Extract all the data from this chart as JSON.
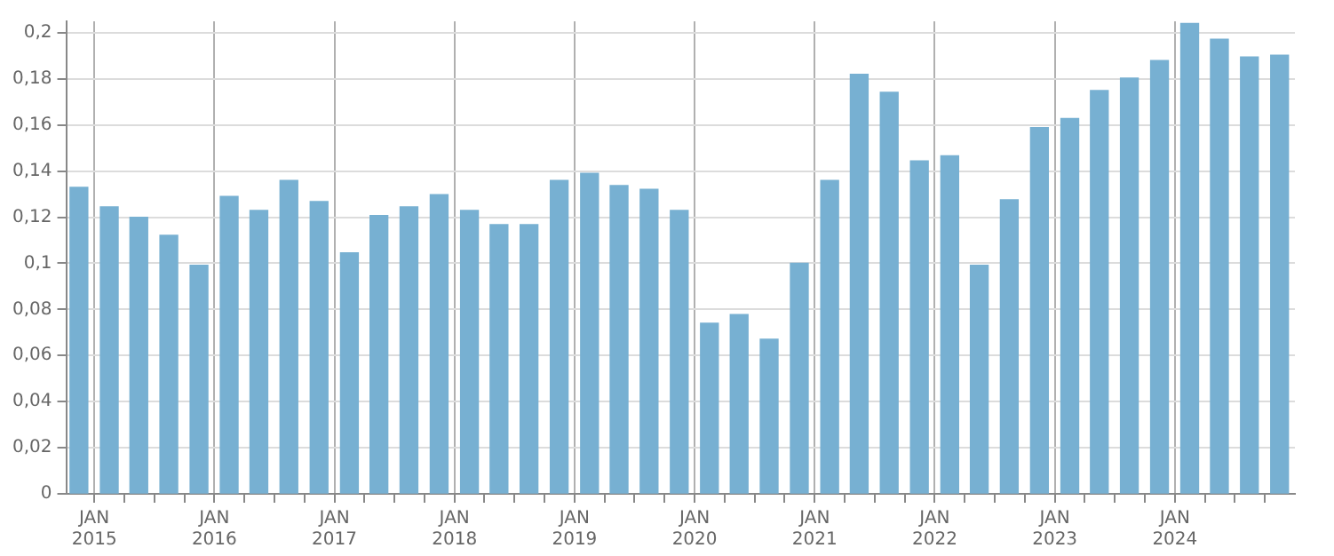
{
  "chart_data": {
    "type": "bar",
    "color": "#77b0d2",
    "x": [
      "2014-11-15",
      "2015-02-15",
      "2015-05-15",
      "2015-08-15",
      "2015-11-15",
      "2016-02-15",
      "2016-05-15",
      "2016-08-15",
      "2016-11-15",
      "2017-02-15",
      "2017-05-15",
      "2017-08-15",
      "2017-11-15",
      "2018-02-15",
      "2018-05-15",
      "2018-08-15",
      "2018-11-15",
      "2019-02-15",
      "2019-05-15",
      "2019-08-15",
      "2019-11-15",
      "2020-02-15",
      "2020-05-15",
      "2020-08-15",
      "2020-11-15",
      "2021-02-15",
      "2021-05-15",
      "2021-08-15",
      "2021-11-15",
      "2022-02-15",
      "2022-05-15",
      "2022-08-15",
      "2022-11-15",
      "2023-02-15",
      "2023-05-15",
      "2023-08-15",
      "2023-11-15",
      "2024-02-15",
      "2024-05-15",
      "2024-08-15",
      "2024-11-15"
    ],
    "values": [
      0.133,
      0.1245,
      0.12,
      0.1122,
      0.0992,
      0.129,
      0.123,
      0.136,
      0.1268,
      0.1046,
      0.1207,
      0.1245,
      0.1298,
      0.123,
      0.1168,
      0.1168,
      0.136,
      0.139,
      0.1337,
      0.1321,
      0.123,
      0.074,
      0.0778,
      0.0671,
      0.1,
      0.136,
      0.182,
      0.1742,
      0.1444,
      0.1467,
      0.0992,
      0.1276,
      0.1589,
      0.1628,
      0.175,
      0.1804,
      0.188,
      0.2041,
      0.1972,
      0.1895,
      0.1903
    ],
    "xlim": [
      "2014-10-07",
      "2025-01-01"
    ],
    "xticks": [
      {
        "value": "2015-01",
        "label": "JAN 2015"
      },
      {
        "value": "2015-04",
        "label": null
      },
      {
        "value": "2015-07",
        "label": null
      },
      {
        "value": "2015-10",
        "label": null
      },
      {
        "value": "2016-01",
        "label": "JAN 2016"
      },
      {
        "value": "2016-04",
        "label": null
      },
      {
        "value": "2016-07",
        "label": null
      },
      {
        "value": "2016-10",
        "label": null
      },
      {
        "value": "2017-01",
        "label": "JAN 2017"
      },
      {
        "value": "2017-04",
        "label": null
      },
      {
        "value": "2017-07",
        "label": null
      },
      {
        "value": "2017-10",
        "label": null
      },
      {
        "value": "2018-01",
        "label": "JAN 2018"
      },
      {
        "value": "2018-04",
        "label": null
      },
      {
        "value": "2018-07",
        "label": null
      },
      {
        "value": "2018-10",
        "label": null
      },
      {
        "value": "2019-01",
        "label": "JAN 2019"
      },
      {
        "value": "2019-04",
        "label": null
      },
      {
        "value": "2019-07",
        "label": null
      },
      {
        "value": "2019-10",
        "label": null
      },
      {
        "value": "2020-01",
        "label": "JAN 2020"
      },
      {
        "value": "2020-04",
        "label": null
      },
      {
        "value": "2020-07",
        "label": null
      },
      {
        "value": "2020-10",
        "label": null
      },
      {
        "value": "2021-01",
        "label": "JAN 2021"
      },
      {
        "value": "2021-04",
        "label": null
      },
      {
        "value": "2021-07",
        "label": null
      },
      {
        "value": "2021-10",
        "label": null
      },
      {
        "value": "2022-01",
        "label": "JAN 2022"
      },
      {
        "value": "2022-04",
        "label": null
      },
      {
        "value": "2022-07",
        "label": null
      },
      {
        "value": "2022-10",
        "label": null
      },
      {
        "value": "2023-01",
        "label": "JAN 2023"
      },
      {
        "value": "2023-04",
        "label": null
      },
      {
        "value": "2023-07",
        "label": null
      },
      {
        "value": "2023-10",
        "label": null
      },
      {
        "value": "2024-01",
        "label": "JAN 2024"
      },
      {
        "value": "2024-04",
        "label": null
      },
      {
        "value": "2024-07",
        "label": null
      },
      {
        "value": "2024-10",
        "label": null
      }
    ],
    "ylim": [
      0,
      0.205
    ],
    "yticks": [
      0,
      {
        "value": 0.02,
        "label": "0,02"
      },
      {
        "value": 0.04,
        "label": "0,04"
      },
      {
        "value": 0.06,
        "label": "0,06"
      },
      {
        "value": 0.08,
        "label": "0,08"
      },
      {
        "value": 0.1,
        "label": "0,1"
      },
      {
        "value": 0.12,
        "label": "0,12"
      },
      {
        "value": 0.14,
        "label": "0,14"
      },
      {
        "value": 0.16,
        "label": "0,16"
      },
      {
        "value": 0.18,
        "label": "0,18"
      },
      {
        "value": 0.2,
        "label": "0,2"
      }
    ],
    "grid": true,
    "legend": false
  }
}
